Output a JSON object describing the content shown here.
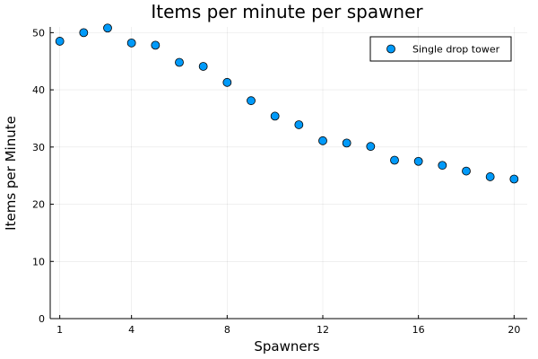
{
  "chart_data": {
    "type": "scatter",
    "title": "Items per minute per spawner",
    "xlabel": "Spawners",
    "ylabel": "Items per Minute",
    "xlim": [
      0.6,
      20.55
    ],
    "ylim": [
      0,
      51
    ],
    "xticks": [
      1,
      4,
      8,
      12,
      16,
      20
    ],
    "yticks": [
      0,
      10,
      20,
      30,
      40,
      50
    ],
    "grid": true,
    "legend_position": "top-right",
    "series": [
      {
        "name": "Single drop tower",
        "color": "#009af9",
        "x": [
          1,
          2,
          3,
          4,
          5,
          6,
          7,
          8,
          9,
          10,
          11,
          12,
          13,
          14,
          15,
          16,
          17,
          18,
          19,
          20
        ],
        "y": [
          48.5,
          50.0,
          50.8,
          48.2,
          47.8,
          44.8,
          44.1,
          41.3,
          38.1,
          35.4,
          33.9,
          31.1,
          30.7,
          30.1,
          27.7,
          27.5,
          26.8,
          25.8,
          24.8,
          24.4
        ]
      }
    ]
  }
}
